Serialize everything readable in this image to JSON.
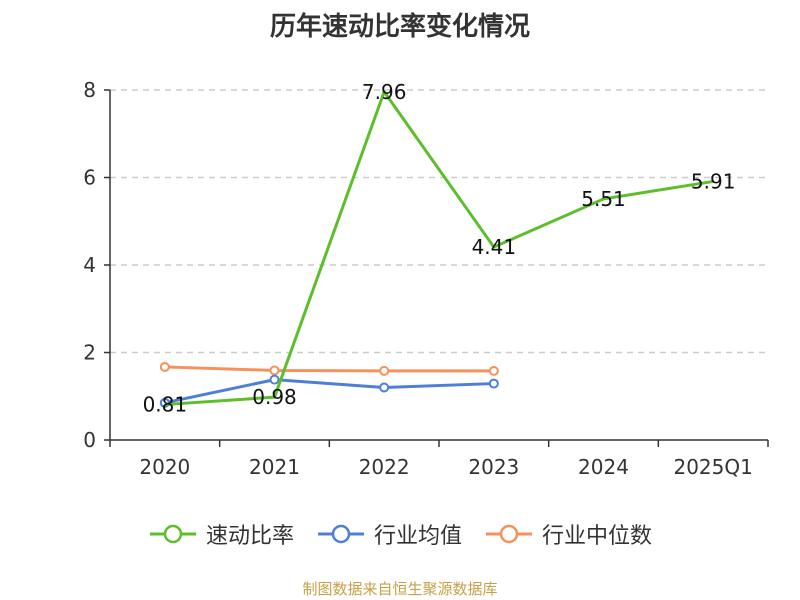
{
  "chart_data": {
    "type": "line",
    "title": "历年速动比率变化情况",
    "categories": [
      "2020",
      "2021",
      "2022",
      "2023",
      "2024",
      "2025Q1"
    ],
    "ylim": [
      0,
      8
    ],
    "yticks": [
      "0",
      "2",
      "4",
      "6",
      "8"
    ],
    "grid": true,
    "legend_position": "bottom",
    "series": [
      {
        "name": "速动比率",
        "color": "#5cbf2a",
        "values": [
          0.81,
          0.98,
          7.96,
          4.41,
          5.51,
          5.91
        ],
        "labels": [
          "0.81",
          "0.98",
          "7.96",
          "4.41",
          "5.51",
          "5.91"
        ]
      },
      {
        "name": "行业均值",
        "color": "#4e7fd8",
        "values": [
          0.85,
          1.38,
          1.2,
          1.29,
          null,
          null
        ]
      },
      {
        "name": "行业中位数",
        "color": "#f7915c",
        "values": [
          1.67,
          1.59,
          1.58,
          1.58,
          null,
          null
        ]
      }
    ]
  },
  "footer": "制图数据来自恒生聚源数据库"
}
